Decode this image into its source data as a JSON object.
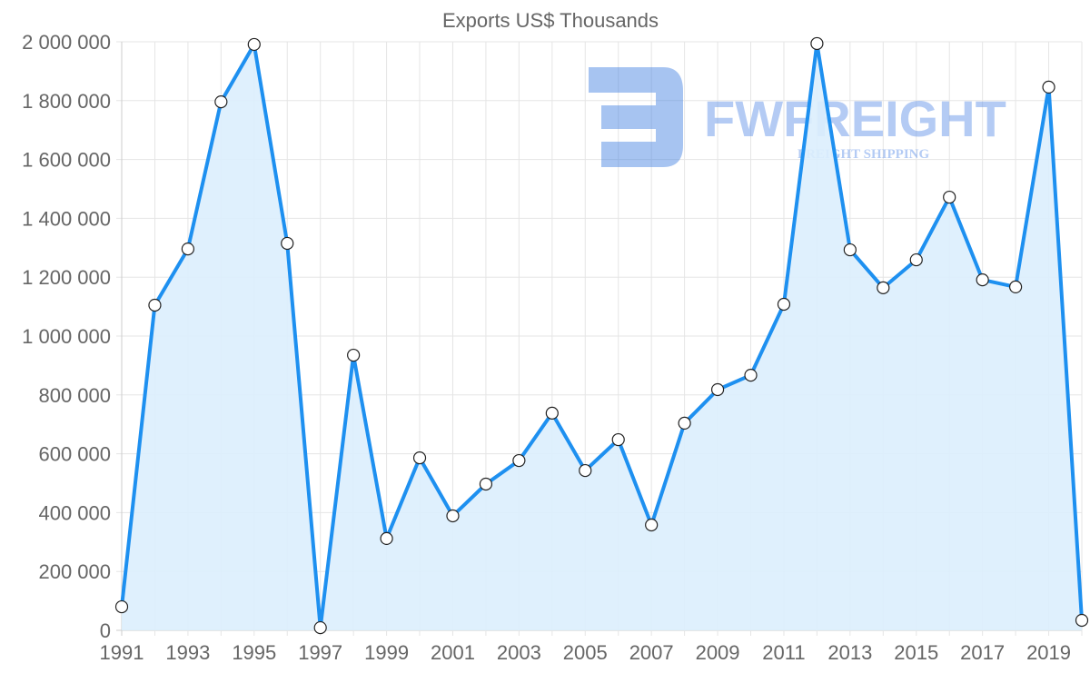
{
  "chart_data": {
    "type": "area",
    "title": "Exports US$ Thousands",
    "xlabel": "",
    "ylabel": "",
    "x": [
      1991,
      1992,
      1993,
      1994,
      1995,
      1996,
      1997,
      1998,
      1999,
      2000,
      2001,
      2002,
      2003,
      2004,
      2005,
      2006,
      2007,
      2008,
      2009,
      2010,
      2011,
      2012,
      2013,
      2014,
      2015,
      2016,
      2017,
      2018,
      2019,
      2020
    ],
    "series": [
      {
        "name": "Exports US$ Thousands",
        "values": [
          80000,
          1105000,
          1296000,
          1796000,
          1991000,
          1315000,
          9000,
          935000,
          312000,
          586000,
          389000,
          497000,
          577000,
          738000,
          543000,
          648000,
          358000,
          704000,
          818000,
          867000,
          1108000,
          1994000,
          1293000,
          1164000,
          1259000,
          1472000,
          1191000,
          1167000,
          1846000,
          34000
        ]
      }
    ],
    "ylim": [
      0,
      2000000
    ],
    "y_ticks": [
      "0",
      "200 000",
      "400 000",
      "600 000",
      "800 000",
      "1 000 000",
      "1 200 000",
      "1 400 000",
      "1 600 000",
      "1 800 000",
      "2 000 000"
    ],
    "x_ticks": [
      "1991",
      "1993",
      "1995",
      "1997",
      "1999",
      "2001",
      "2003",
      "2005",
      "2007",
      "2009",
      "2011",
      "2013",
      "2015",
      "2017",
      "2019"
    ],
    "grid": true,
    "legend": "none",
    "colors": {
      "line": "#1e90f0",
      "fill": "#dbeefd",
      "grid": "#e5e5e5"
    }
  },
  "watermark": {
    "name": "FWFREIGHT",
    "tagline": "FREIGHT SHIPPING"
  }
}
